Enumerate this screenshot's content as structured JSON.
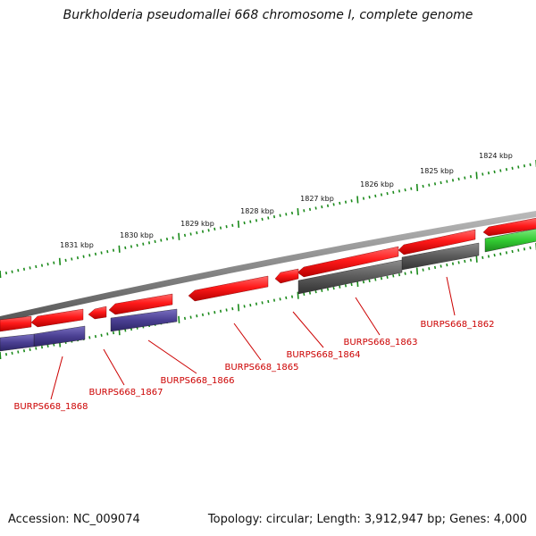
{
  "title": "Burkholderia pseudomallei 668 chromosome I, complete genome",
  "footer": {
    "accession": "Accession: NC_009074",
    "summary": "Topology: circular; Length: 3,912,947 bp; Genes: 4,000"
  },
  "scale": {
    "tick_labels": [
      "1824 kbp",
      "1825 kbp",
      "1826 kbp",
      "1827 kbp",
      "1828 kbp",
      "1829 kbp",
      "1830 kbp",
      "1831 kbp"
    ]
  },
  "genes": [
    {
      "id": "BURPS668_1862"
    },
    {
      "id": "BURPS668_1863"
    },
    {
      "id": "BURPS668_1864"
    },
    {
      "id": "BURPS668_1865"
    },
    {
      "id": "BURPS668_1866"
    },
    {
      "id": "BURPS668_1867"
    },
    {
      "id": "BURPS668_1868"
    }
  ],
  "colors": {
    "cds": "#ff1a1a",
    "gene_gray": "#5a5a5a",
    "gene_purple": "#4a3f92",
    "gene_green": "#33cc33",
    "backbone": "#8a8a8a",
    "ticks": "#1a8a1a",
    "label": "#cc0000"
  }
}
